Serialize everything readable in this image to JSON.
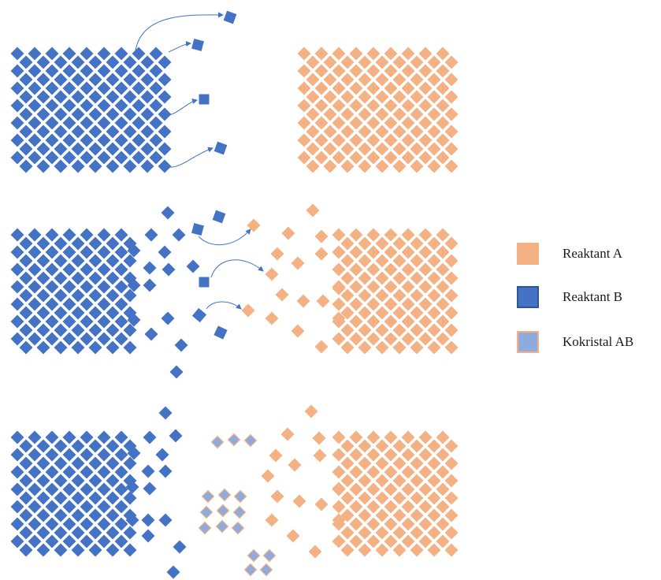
{
  "colors": {
    "reactant_a": "#F4B183",
    "reactant_b": "#4472C4",
    "cocrystal_ab": "#8FAADC",
    "cocrystal_border": "#F4B183",
    "arrow": "#4472C4"
  },
  "panels": [
    {
      "stage": "initial",
      "description_icons": [
        "reactant-b-crystal",
        "reactant-a-crystal",
        "diffusion-arrows"
      ]
    },
    {
      "stage": "diffusion",
      "description_icons": [
        "reactant-b-crystal",
        "reactant-a-crystal",
        "diffusion-arrows"
      ]
    },
    {
      "stage": "cocrystal-formation",
      "description_icons": [
        "reactant-b-crystal",
        "reactant-a-crystal",
        "cocrystal-clusters"
      ]
    }
  ],
  "legend": [
    {
      "label": "Reaktant A",
      "color_key": "reactant_a",
      "icon": "square-swatch"
    },
    {
      "label": "Reaktant B",
      "color_key": "reactant_b",
      "icon": "square-swatch"
    },
    {
      "label": "Kokristal AB",
      "color_key": "cocrystal_ab",
      "icon": "square-swatch"
    }
  ]
}
